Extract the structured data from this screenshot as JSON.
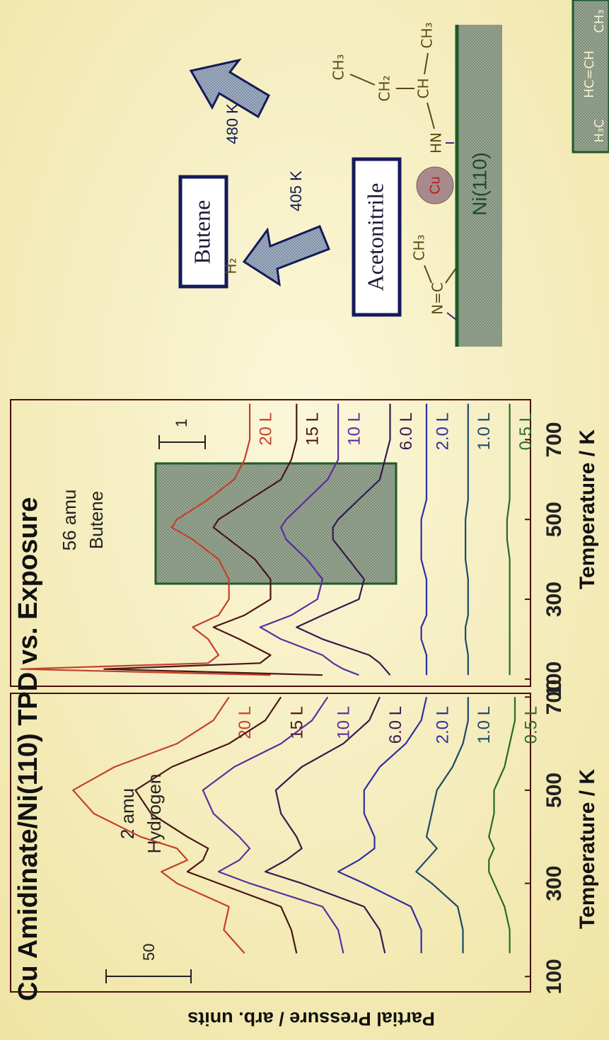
{
  "chart_data": [
    {
      "type": "line",
      "title": "Cu Amidinate/Ni(110) TPD vs. Exposure",
      "ylabel": "Partial Pressure / arb. units",
      "xlabel": "Temperature / K",
      "annotations": [
        "2 amu",
        "Hydrogen"
      ],
      "scale_bar": "50",
      "xlim": [
        67,
        708
      ],
      "ylim": [
        0,
        100
      ],
      "xticks": [
        100,
        300,
        500,
        700
      ],
      "x": [
        150,
        200,
        250,
        300,
        325,
        350,
        375,
        400,
        450,
        500,
        550,
        600,
        650,
        700
      ],
      "series": [
        {
          "name": "20 L",
          "color": "#c4402c",
          "values": [
            55,
            59,
            58,
            68,
            71,
            66,
            68,
            75,
            84,
            88,
            80,
            68,
            61,
            58
          ]
        },
        {
          "name": "15 L",
          "color": "#4a1616",
          "values": [
            45,
            46,
            48,
            60,
            66,
            63,
            62,
            66,
            73,
            76,
            69,
            58,
            51,
            48
          ]
        },
        {
          "name": "10 L",
          "color": "#5c2e9c",
          "values": [
            36,
            37,
            40,
            54,
            60,
            56,
            54,
            56,
            61,
            63,
            57,
            48,
            42,
            39
          ]
        },
        {
          "name": "6.0 L",
          "color": "#38184e",
          "values": [
            28,
            29,
            32,
            44,
            51,
            47,
            44,
            45,
            48,
            49,
            44,
            36,
            31,
            29
          ]
        },
        {
          "name": "2.0 L",
          "color": "#2e30a0",
          "values": [
            21,
            21,
            23,
            32,
            37,
            33,
            30,
            30,
            32,
            32,
            29,
            24,
            21,
            20
          ]
        },
        {
          "name": "1.0 L",
          "color": "#1a4a6a",
          "values": [
            13,
            13,
            14,
            19,
            22,
            20,
            18,
            20,
            19,
            18,
            15,
            13,
            12,
            12
          ]
        },
        {
          "name": "0.5 L",
          "color": "#2a6a2a",
          "values": [
            4,
            4,
            5,
            7,
            8,
            8,
            7,
            8,
            7,
            7,
            5,
            4,
            3,
            3
          ]
        }
      ]
    },
    {
      "type": "line",
      "xlabel": "Temperature / K",
      "annotations": [
        "56 amu",
        "Butene"
      ],
      "scale_bar": "1",
      "xlim": [
        82,
        800
      ],
      "ylim": [
        0,
        100
      ],
      "xticks": [
        100,
        300,
        500,
        700
      ],
      "x": [
        110,
        125,
        140,
        160,
        200,
        230,
        260,
        300,
        350,
        400,
        450,
        480,
        500,
        550,
        600,
        650,
        700,
        750,
        790
      ],
      "series": [
        {
          "name": "20 L",
          "color": "#c4402c",
          "values": [
            50,
            98,
            62,
            60,
            62,
            65,
            60,
            58,
            58,
            60,
            65,
            69,
            68,
            62,
            57,
            55,
            54,
            54,
            54
          ]
        },
        {
          "name": "15 L",
          "color": "#4a1616",
          "values": [
            40,
            82,
            52,
            50,
            56,
            61,
            55,
            50,
            50,
            53,
            58,
            61,
            60,
            54,
            48,
            46,
            45,
            45,
            45
          ]
        },
        {
          "name": "10 L",
          "color": "#5c2e9c",
          "values": [
            33,
            36,
            38,
            40,
            48,
            52,
            46,
            41,
            40,
            43,
            47,
            48,
            47,
            43,
            39,
            37,
            37,
            37,
            37
          ]
        },
        {
          "name": "6.0 L",
          "color": "#38184e",
          "values": [
            27,
            28,
            29,
            31,
            40,
            45,
            40,
            33,
            32,
            35,
            38,
            38,
            37,
            33,
            29,
            28,
            27,
            27,
            27
          ]
        },
        {
          "name": "2.0 L",
          "color": "#2e30a0",
          "values": [
            20,
            20,
            20,
            20,
            21,
            21,
            20,
            20,
            20,
            21,
            21,
            21,
            21,
            20,
            20,
            20,
            20,
            20,
            20
          ]
        },
        {
          "name": "1.0 L",
          "color": "#1a4a6a",
          "values": [
            12,
            12,
            12,
            12,
            12.5,
            12.5,
            12,
            12,
            12,
            12.5,
            12.5,
            12.5,
            12.5,
            12,
            12,
            12,
            12,
            12,
            12
          ]
        },
        {
          "name": "0.5 L",
          "color": "#2a6a2a",
          "values": [
            4,
            4,
            4,
            4,
            4,
            4,
            4,
            4,
            4,
            4,
            4.5,
            4.5,
            4.5,
            4,
            4,
            4,
            4,
            4,
            4
          ]
        }
      ]
    }
  ],
  "diagram": {
    "butene": "Butene",
    "acetonitrile": "Acetonitrile",
    "h2": "H₂",
    "t405": "405 K",
    "t480": "480 K",
    "cu": "Cu",
    "surface": "Ni(110)",
    "nc": "N=C",
    "ch3_a": "CH₃",
    "hn": "HN",
    "ch": "CH",
    "ch2": "CH₂",
    "ch3_b": "CH₃",
    "ch3_c": "CH₃",
    "h3c": "H₃C",
    "hcch": "HC=CH",
    "ch3_d": "CH₃"
  }
}
